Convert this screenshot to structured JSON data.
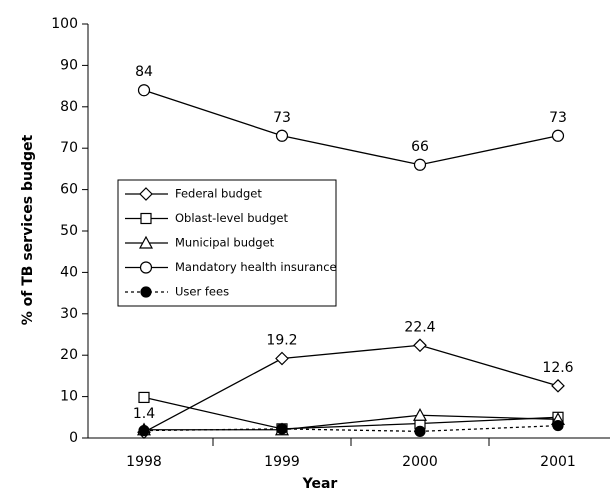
{
  "chart_data": {
    "type": "line",
    "x_label": "Year",
    "y_label": "% of TB services budget",
    "categories": [
      "1998",
      "1999",
      "2000",
      "2001"
    ],
    "series": [
      {
        "name": "Federal budget",
        "color": "#000000",
        "marker": "diamond",
        "dash": false,
        "data_labels": true,
        "values": [
          1.4,
          19.2,
          22.4,
          12.6
        ]
      },
      {
        "name": "Oblast-level budget",
        "color": "#000000",
        "marker": "square",
        "dash": false,
        "data_labels": false,
        "values": [
          9.8,
          2.2,
          3.5,
          5
        ]
      },
      {
        "name": "Municipal budget",
        "color": "#000000",
        "marker": "triangle",
        "dash": false,
        "data_labels": false,
        "values": [
          2,
          2,
          5.5,
          4.5
        ]
      },
      {
        "name": "Mandatory health insurance",
        "color": "#000000",
        "marker": "circle",
        "dash": false,
        "data_labels": true,
        "values": [
          84,
          73,
          66,
          73
        ]
      },
      {
        "name": "User fees",
        "color": "#000000",
        "marker": "filled-circle",
        "dash": true,
        "data_labels": false,
        "values": [
          1.8,
          2.2,
          1.6,
          3
        ]
      }
    ],
    "ylim": [
      0,
      100
    ],
    "yticks": [
      0,
      10,
      20,
      30,
      40,
      50,
      60,
      70,
      80,
      90,
      100
    ],
    "grid": false
  }
}
